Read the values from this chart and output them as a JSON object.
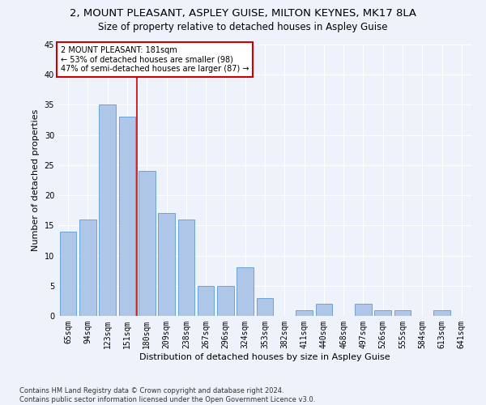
{
  "title_line1": "2, MOUNT PLEASANT, ASPLEY GUISE, MILTON KEYNES, MK17 8LA",
  "title_line2": "Size of property relative to detached houses in Aspley Guise",
  "xlabel": "Distribution of detached houses by size in Aspley Guise",
  "ylabel": "Number of detached properties",
  "footnote": "Contains HM Land Registry data © Crown copyright and database right 2024.\nContains public sector information licensed under the Open Government Licence v3.0.",
  "categories": [
    "65sqm",
    "94sqm",
    "123sqm",
    "151sqm",
    "180sqm",
    "209sqm",
    "238sqm",
    "267sqm",
    "296sqm",
    "324sqm",
    "353sqm",
    "382sqm",
    "411sqm",
    "440sqm",
    "468sqm",
    "497sqm",
    "526sqm",
    "555sqm",
    "584sqm",
    "613sqm",
    "641sqm"
  ],
  "values": [
    14,
    16,
    35,
    33,
    24,
    17,
    16,
    5,
    5,
    8,
    3,
    0,
    1,
    2,
    0,
    2,
    1,
    1,
    0,
    1,
    0
  ],
  "bar_color": "#aec6e8",
  "bar_edge_color": "#5b9bd5",
  "property_line_index": 4,
  "annotation_text_line1": "2 MOUNT PLEASANT: 181sqm",
  "annotation_text_line2": "← 53% of detached houses are smaller (98)",
  "annotation_text_line3": "47% of semi-detached houses are larger (87) →",
  "annotation_box_color": "#ffffff",
  "annotation_box_edge_color": "#cc0000",
  "property_line_color": "#cc0000",
  "ylim": [
    0,
    45
  ],
  "yticks": [
    0,
    5,
    10,
    15,
    20,
    25,
    30,
    35,
    40,
    45
  ],
  "background_color": "#eef2fb",
  "grid_color": "#ffffff",
  "title_fontsize": 9.5,
  "subtitle_fontsize": 8.5,
  "axis_label_fontsize": 8,
  "tick_fontsize": 7,
  "annotation_fontsize": 7,
  "footnote_fontsize": 6
}
